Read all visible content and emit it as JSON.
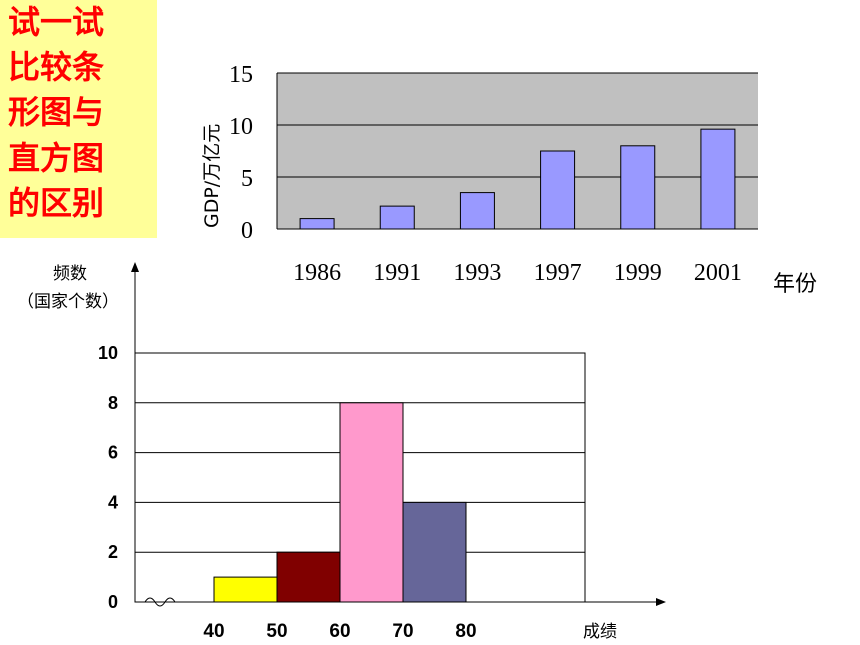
{
  "side_label": {
    "lines": [
      "试一试",
      "比较条",
      "形图与",
      "直方图",
      "的区别"
    ]
  },
  "chart_data": [
    {
      "type": "bar",
      "title": "",
      "ylabel": "GDP/万亿元",
      "xlabel": "年份",
      "ylim": [
        0,
        15
      ],
      "yticks": [
        "0",
        "5",
        "10",
        "15"
      ],
      "categories": [
        "1986",
        "1991",
        "1993",
        "1997",
        "1999",
        "2001"
      ],
      "values": [
        1.0,
        2.2,
        3.5,
        7.5,
        8.0,
        9.6
      ],
      "grid": true,
      "colors": {
        "bar": "#9999ff",
        "plot_bg": "#c0c0c0",
        "bar_stroke": "#000000"
      }
    },
    {
      "type": "bar",
      "title": "",
      "ylabel_lines": [
        "频数",
        "（国家个数）"
      ],
      "xlabel": "成绩",
      "ylim": [
        0,
        10
      ],
      "yticks": [
        "0",
        "2",
        "4",
        "6",
        "8",
        "10"
      ],
      "x_edges": [
        "40",
        "50",
        "60",
        "70",
        "80"
      ],
      "bins": [
        {
          "from": 40,
          "to": 50,
          "value": 1,
          "color": "#ffff00"
        },
        {
          "from": 50,
          "to": 60,
          "value": 2,
          "color": "#800000"
        },
        {
          "from": 60,
          "to": 70,
          "value": 8,
          "color": "#ff99cc"
        },
        {
          "from": 70,
          "to": 80,
          "value": 4,
          "color": "#666699"
        }
      ],
      "grid": true
    }
  ]
}
